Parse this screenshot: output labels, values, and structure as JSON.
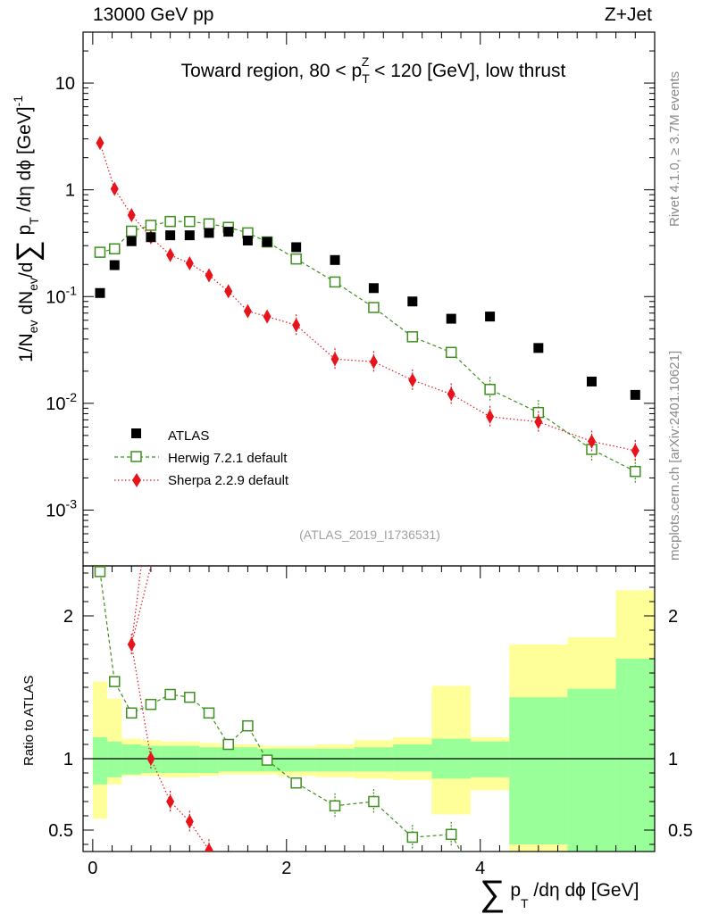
{
  "header": {
    "left": "13000 GeV pp",
    "right": "Z+Jet"
  },
  "side_labels": {
    "rivet": "Rivet 4.1.0, ≥ 3.7M events",
    "mcplots": "mcplots.cern.ch [arXiv:2401.10621]"
  },
  "chart_data": [
    {
      "type": "scatter",
      "panel": "main",
      "title": "Toward region, 80 < p_T^Z < 120 [GeV], low thrust",
      "title_parts": {
        "pre": "Toward region, 80 < p",
        "sub": "T",
        "sup": "Z",
        "post": " < 120 [GeV], low thrust"
      },
      "ylabel": "1/N_ev dN_ev/d∑ p_T /dη dϕ [GeV]^-1",
      "ylabel_parts": {
        "a": "1/N",
        "a_sub": "ev",
        "b": " dN",
        "b_sub": "ev",
        "c": "/d",
        "sigma": "∑",
        "d": " p",
        "d_sub": "T",
        "e": " /dη dϕ  [GeV]",
        "e_sup": "-1"
      },
      "yscale": "log",
      "ylim": [
        0.0003,
        30
      ],
      "xlim": [
        -0.1,
        5.8
      ],
      "yticks": [
        {
          "value": 0.001,
          "label": "10",
          "sup": "-3"
        },
        {
          "value": 0.01,
          "label": "10",
          "sup": "-2"
        },
        {
          "value": 0.1,
          "label": "10",
          "sup": "-1"
        },
        {
          "value": 1,
          "label": "1",
          "sup": ""
        },
        {
          "value": 10,
          "label": "10",
          "sup": ""
        }
      ],
      "analysis_label": "(ATLAS_2019_I1736531)",
      "legend_position": "lower-left",
      "bin_edges": [
        0.0,
        0.15,
        0.3,
        0.5,
        0.7,
        0.9,
        1.1,
        1.3,
        1.5,
        1.7,
        1.9,
        2.3,
        2.7,
        3.1,
        3.5,
        3.9,
        4.3,
        4.9,
        5.4,
        5.8
      ],
      "series": [
        {
          "name": "ATLAS",
          "style": "data",
          "color": "#000000",
          "x": [
            0.075,
            0.225,
            0.4,
            0.6,
            0.8,
            1.0,
            1.2,
            1.4,
            1.6,
            1.8,
            2.1,
            2.5,
            2.9,
            3.3,
            3.7,
            4.1,
            4.6,
            5.15,
            5.6
          ],
          "y": [
            0.108,
            0.197,
            0.33,
            0.36,
            0.375,
            0.375,
            0.395,
            0.405,
            0.335,
            0.325,
            0.29,
            0.22,
            0.12,
            0.09,
            0.062,
            0.065,
            0.033,
            0.016,
            0.012
          ]
        },
        {
          "name": "Herwig 7.2.1 default",
          "style": "dashed-open-square",
          "color": "#3f8f1f",
          "x": [
            0.075,
            0.225,
            0.4,
            0.6,
            0.8,
            1.0,
            1.2,
            1.4,
            1.6,
            1.8,
            2.1,
            2.5,
            2.9,
            3.3,
            3.7,
            4.1,
            4.6,
            5.15,
            5.6
          ],
          "y": [
            0.26,
            0.28,
            0.41,
            0.465,
            0.505,
            0.505,
            0.48,
            0.445,
            0.395,
            0.325,
            0.225,
            0.137,
            0.079,
            0.042,
            0.03,
            0.0135,
            0.0082,
            0.0037,
            0.0023
          ]
        },
        {
          "name": "Sherpa 2.2.9 default",
          "style": "dotted-diamond",
          "color": "#e8141c",
          "x": [
            0.075,
            0.225,
            0.4,
            0.6,
            0.8,
            1.0,
            1.2,
            1.4,
            1.6,
            1.8,
            2.1,
            2.5,
            2.9,
            3.3,
            3.7,
            4.1,
            4.6,
            5.15,
            5.6
          ],
          "y": [
            2.75,
            1.02,
            0.58,
            0.36,
            0.245,
            0.205,
            0.158,
            0.112,
            0.073,
            0.065,
            0.054,
            0.026,
            0.0245,
            0.0165,
            0.0122,
            0.0075,
            0.0067,
            0.0044,
            0.0036
          ]
        }
      ]
    },
    {
      "type": "scatter",
      "panel": "ratio",
      "ylabel": "Ratio to ATLAS",
      "xlabel": "∑ p_T /dη dϕ [GeV]",
      "xlabel_parts": {
        "sigma": "∑",
        "a": " p",
        "a_sub": "T",
        "b": " /dη dϕ [GeV]"
      },
      "xlim": [
        -0.1,
        5.8
      ],
      "ylim": [
        0.35,
        2.35
      ],
      "xticks": [
        {
          "value": 0,
          "label": "0"
        },
        {
          "value": 2,
          "label": "2"
        },
        {
          "value": 4,
          "label": "4"
        }
      ],
      "yticks": [
        {
          "value": 0.5,
          "label": "0.5"
        },
        {
          "value": 1,
          "label": "1"
        },
        {
          "value": 2,
          "label": "2"
        }
      ],
      "uncertainty_bands": {
        "bin_edges": [
          0.0,
          0.15,
          0.3,
          0.5,
          0.7,
          0.9,
          1.1,
          1.3,
          1.5,
          1.7,
          1.9,
          2.3,
          2.7,
          3.1,
          3.5,
          3.9,
          4.3,
          4.9,
          5.4,
          5.8
        ],
        "inner_low": [
          0.82,
          0.87,
          0.89,
          0.9,
          0.9,
          0.9,
          0.9,
          0.91,
          0.91,
          0.91,
          0.91,
          0.91,
          0.91,
          0.91,
          0.86,
          0.87,
          0.4,
          0.35,
          0.35
        ],
        "inner_high": [
          1.15,
          1.12,
          1.1,
          1.09,
          1.09,
          1.09,
          1.08,
          1.08,
          1.08,
          1.07,
          1.07,
          1.07,
          1.08,
          1.1,
          1.14,
          1.12,
          1.43,
          1.49,
          1.7
        ],
        "outer_low": [
          0.58,
          0.82,
          0.88,
          0.88,
          0.87,
          0.87,
          0.88,
          0.89,
          0.89,
          0.89,
          0.88,
          0.87,
          0.86,
          0.85,
          0.61,
          0.78,
          0.35,
          0.35,
          0.35
        ],
        "outer_high": [
          1.54,
          1.42,
          1.14,
          1.13,
          1.12,
          1.12,
          1.11,
          1.1,
          1.1,
          1.09,
          1.09,
          1.1,
          1.13,
          1.15,
          1.51,
          1.15,
          1.8,
          1.85,
          2.18
        ]
      },
      "series": [
        {
          "name": "Herwig 7.2.1 default",
          "color": "#3f8f1f",
          "x": [
            0.075,
            0.225,
            0.4,
            0.6,
            0.8,
            1.0,
            1.2,
            1.4,
            1.6,
            1.8,
            2.1,
            2.5,
            2.9,
            3.3,
            3.7,
            3.8
          ],
          "y": [
            2.31,
            1.54,
            1.32,
            1.38,
            1.45,
            1.43,
            1.32,
            1.1,
            1.23,
            0.99,
            0.83,
            0.67,
            0.7,
            0.45,
            0.47,
            0.35
          ]
        },
        {
          "name": "Sherpa 2.2.9 default",
          "color": "#e8141c",
          "x": [
            0.63,
            0.6,
            0.4,
            0.6,
            0.8,
            1.0,
            1.2
          ],
          "y": [
            2.35,
            2.35,
            1.8,
            1.0,
            0.7,
            0.56,
            0.36
          ]
        }
      ]
    }
  ]
}
